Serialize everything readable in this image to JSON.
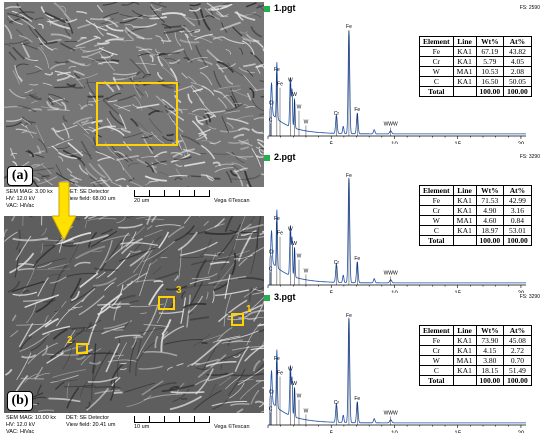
{
  "sem_panels": [
    {
      "label": "(a)",
      "meta": {
        "mag": "SEM MAG: 3.00 kx",
        "det": "DET: SE Detector",
        "hv": "HV:   12.0 kV",
        "view": "View field: 68.00 um",
        "vac": "VAC: HiVac",
        "scale": "20 um",
        "brand": "Vega ©Tescan"
      }
    },
    {
      "label": "(b)",
      "meta": {
        "mag": "SEM MAG: 10.00 kx",
        "det": "DET: SE Detector",
        "hv": "HV:   12.0 kV",
        "view": "View field: 20.41 um",
        "vac": "VAC: HiVac",
        "scale": "10 um",
        "brand": "Vega ©Tescan"
      },
      "markers": [
        "1",
        "2",
        "3"
      ]
    }
  ],
  "marker_color": "#ffd200",
  "eds_panels": [
    {
      "title": "1.pgt",
      "fs": "FS: 2590",
      "x_ticks": [
        "5",
        "10",
        "15",
        "20"
      ],
      "peak_labels": [
        "Fe",
        "Fe",
        "Cr",
        "W",
        "C",
        "Cr",
        "Fe",
        "Fe",
        "W",
        "W",
        "W",
        "WWW"
      ],
      "headers": [
        "Element",
        "Line",
        "Wt%",
        "At%"
      ],
      "rows": [
        [
          "Fe",
          "KA1",
          "67.19",
          "43.82"
        ],
        [
          "Cr",
          "KA1",
          "5.79",
          "4.05"
        ],
        [
          "W",
          "MA1",
          "10.53",
          "2.08"
        ],
        [
          "C",
          "KA1",
          "16.50",
          "50.05"
        ]
      ],
      "total": [
        "Total",
        "",
        "100.00",
        "100.00"
      ]
    },
    {
      "title": "2.pgt",
      "fs": "FS: 3290",
      "x_ticks": [
        "5",
        "10",
        "15",
        "20"
      ],
      "peak_labels": [
        "Fe",
        "Fe",
        "Cr",
        "W",
        "C",
        "Cr",
        "Fe",
        "Fe",
        "W",
        "W",
        "W",
        "WWW"
      ],
      "headers": [
        "Element",
        "Line",
        "Wt%",
        "At%"
      ],
      "rows": [
        [
          "Fe",
          "KA1",
          "71.53",
          "42.99"
        ],
        [
          "Cr",
          "KA1",
          "4.90",
          "3.16"
        ],
        [
          "W",
          "MA1",
          "4.60",
          "0.84"
        ],
        [
          "C",
          "KA1",
          "18.97",
          "53.01"
        ]
      ],
      "total": [
        "Total",
        "",
        "100.00",
        "100.00"
      ]
    },
    {
      "title": "3.pgt",
      "fs": "FS: 3290",
      "x_ticks": [
        "5",
        "10",
        "15",
        "20"
      ],
      "peak_labels": [
        "Fe",
        "Fe",
        "Cr",
        "W",
        "C",
        "Cr",
        "Fe",
        "Fe",
        "W",
        "W",
        "W",
        "WWW"
      ],
      "headers": [
        "Element",
        "Line",
        "Wt%",
        "At%"
      ],
      "rows": [
        [
          "Fe",
          "KA1",
          "73.90",
          "45.08"
        ],
        [
          "Cr",
          "KA1",
          "4.15",
          "2.72"
        ],
        [
          "W",
          "MA1",
          "3.80",
          "0.70"
        ],
        [
          "C",
          "KA1",
          "18.15",
          "51.49"
        ]
      ],
      "total": [
        "Total",
        "",
        "100.00",
        "100.00"
      ]
    }
  ],
  "spectrum_color": "#1f4fa8",
  "title_marker_color": "#22b14c",
  "arrow_color": "#ffe000"
}
